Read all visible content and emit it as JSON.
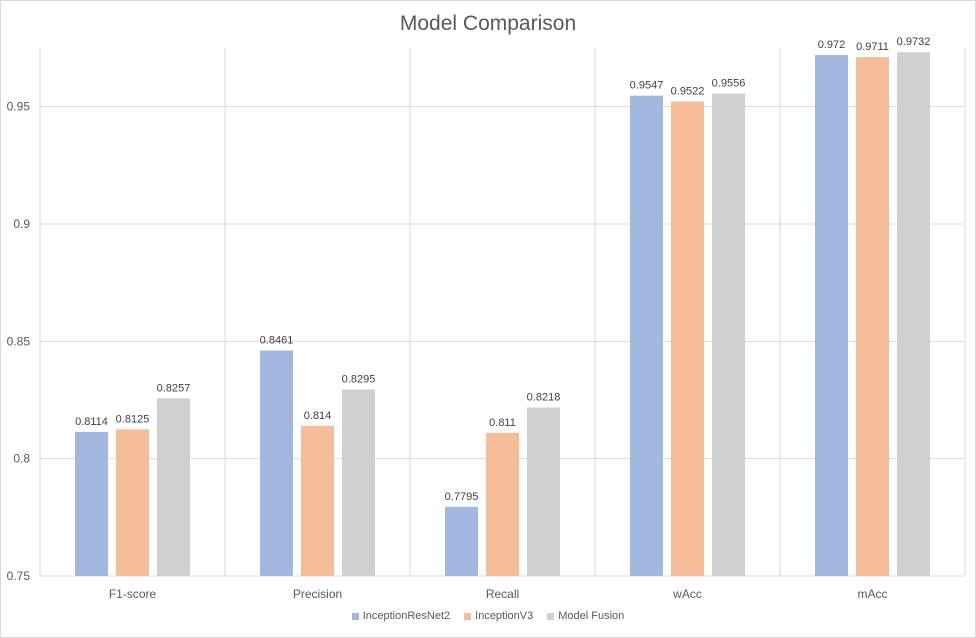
{
  "chart_data": {
    "type": "bar",
    "title": "Model Comparison",
    "xlabel": "",
    "ylabel": "",
    "categories": [
      "F1-score",
      "Precision",
      "Recall",
      "wAcc",
      "mAcc"
    ],
    "series": [
      {
        "name": "InceptionResNet2",
        "color": "#a3b8e0",
        "values": [
          0.8114,
          0.8461,
          0.7795,
          0.9547,
          0.972
        ]
      },
      {
        "name": "InceptionV3",
        "color": "#f5be98",
        "values": [
          0.8125,
          0.814,
          0.811,
          0.9522,
          0.9711
        ]
      },
      {
        "name": "Model Fusion",
        "color": "#d0d0d0",
        "values": [
          0.8257,
          0.8295,
          0.8218,
          0.9556,
          0.9732
        ]
      }
    ],
    "ylim": [
      0.75,
      0.975
    ],
    "yticks": [
      0.75,
      0.8,
      0.85,
      0.9,
      0.95
    ],
    "ytick_labels": [
      "0.75",
      "0.8",
      "0.85",
      "0.9",
      "0.95"
    ],
    "data_labels": [
      [
        "0.8114",
        "0.8461",
        "0.7795",
        "0.9547",
        "0.972"
      ],
      [
        "0.8125",
        "0.814",
        "0.811",
        "0.9522",
        "0.9711"
      ],
      [
        "0.8257",
        "0.8295",
        "0.8218",
        "0.9556",
        "0.9732"
      ]
    ],
    "grid": true,
    "legend_position": "bottom"
  }
}
